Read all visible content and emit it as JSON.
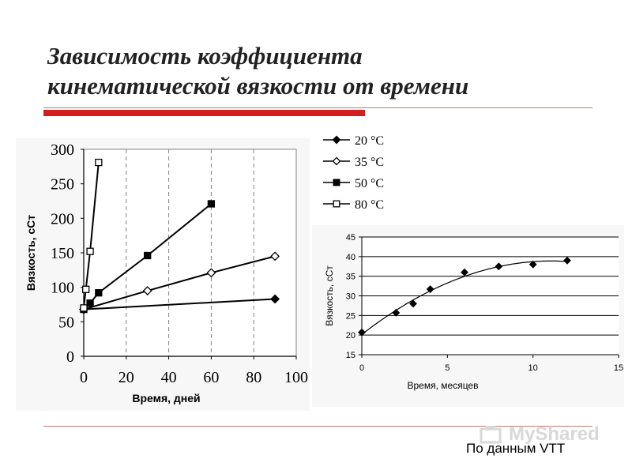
{
  "title": {
    "line1": "Зависимость коэффициента",
    "line2": "кинематической вязкости от времени"
  },
  "footer": "По данным VTT",
  "watermark": "MyShared",
  "chart_data": [
    {
      "type": "line",
      "xlabel": "Время, дней",
      "ylabel": "Вязкость, сСт",
      "xlim": [
        0,
        100
      ],
      "ylim": [
        0,
        300
      ],
      "xticks": [
        "0",
        "20",
        "40",
        "60",
        "80",
        "100"
      ],
      "yticks": [
        "0",
        "50",
        "100",
        "150",
        "200",
        "250",
        "300"
      ],
      "grid": "dashed vertical",
      "legend_position": "outside right",
      "series": [
        {
          "name": "20 °C",
          "marker": "diamond-filled",
          "x": [
            0,
            90
          ],
          "y": [
            68,
            83
          ]
        },
        {
          "name": "35 °C",
          "marker": "diamond-open",
          "x": [
            0,
            30,
            60,
            90
          ],
          "y": [
            68,
            95,
            121,
            145
          ]
        },
        {
          "name": "50 °C",
          "marker": "square-filled",
          "x": [
            0,
            3,
            7,
            30,
            60
          ],
          "y": [
            68,
            77,
            92,
            146,
            221
          ]
        },
        {
          "name": "80 °C",
          "marker": "square-open",
          "x": [
            0,
            1,
            3,
            7
          ],
          "y": [
            70,
            97,
            152,
            281
          ]
        }
      ]
    },
    {
      "type": "scatter",
      "xlabel": "Время, месяцев",
      "ylabel": "Вязкость, сСт",
      "xlim": [
        0,
        15
      ],
      "ylim": [
        15,
        45
      ],
      "xticks": [
        "0",
        "5",
        "10",
        "15"
      ],
      "yticks": [
        "15",
        "20",
        "25",
        "30",
        "35",
        "40",
        "45"
      ],
      "grid": "horizontal",
      "trendline": "polynomial",
      "series": [
        {
          "marker": "diamond-filled",
          "x": [
            0,
            2,
            3,
            4,
            6,
            8,
            10,
            12
          ],
          "y": [
            20.7,
            25.7,
            28,
            31.7,
            36,
            37.5,
            38,
            39
          ]
        }
      ]
    }
  ]
}
